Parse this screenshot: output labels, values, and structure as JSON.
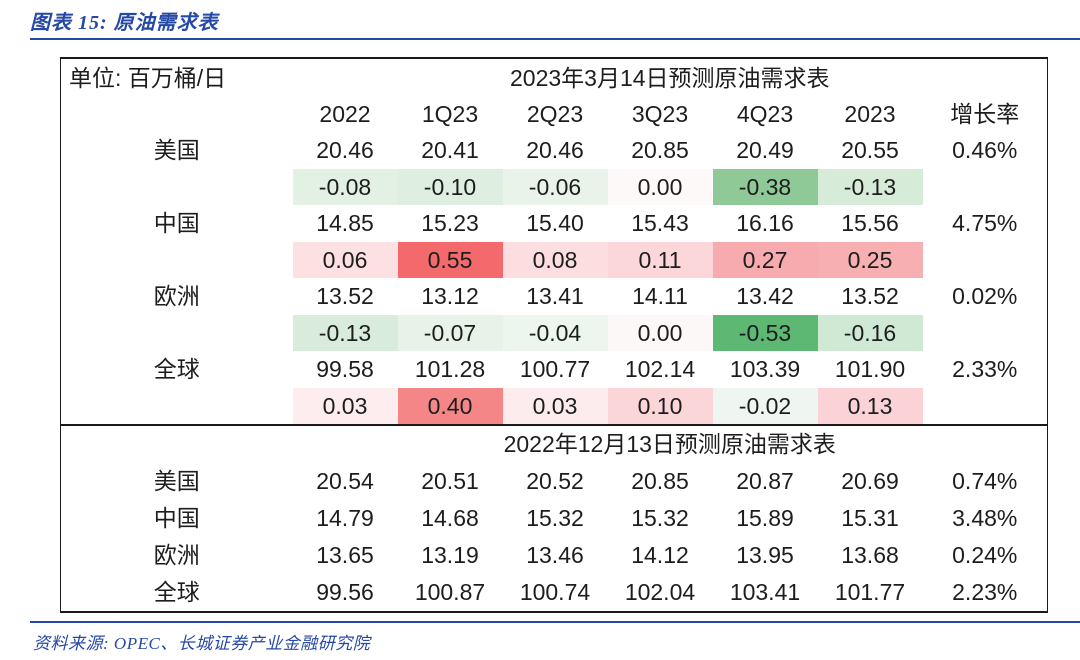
{
  "page": {
    "figure_title": "图表 15:  原油需求表",
    "source": "资料来源: OPEC、长城证券产业金融研究院",
    "accent_color": "#2649a6"
  },
  "table": {
    "unit_label": "单位: 百万桶/日",
    "columns": [
      "2022",
      "1Q23",
      "2Q23",
      "3Q23",
      "4Q23",
      "2023",
      "增长率"
    ],
    "sections": [
      {
        "title": "2023年3月14日预测原油需求表",
        "has_column_header": true,
        "has_delta_rows": true,
        "rows": [
          {
            "label": "美国",
            "values": [
              "20.46",
              "20.41",
              "20.46",
              "20.85",
              "20.49",
              "20.55"
            ],
            "growth": "0.46%",
            "deltas": [
              {
                "v": "-0.08",
                "bg": "#e3f0e4"
              },
              {
                "v": "-0.10",
                "bg": "#deeee1"
              },
              {
                "v": "-0.06",
                "bg": "#e9f3ea"
              },
              {
                "v": "0.00",
                "bg": "#fdf9f9"
              },
              {
                "v": "-0.38",
                "bg": "#8fc998"
              },
              {
                "v": "-0.13",
                "bg": "#d7ebd9"
              }
            ]
          },
          {
            "label": "中国",
            "values": [
              "14.85",
              "15.23",
              "15.40",
              "15.43",
              "16.16",
              "15.56"
            ],
            "growth": "4.75%",
            "deltas": [
              {
                "v": "0.06",
                "bg": "#fce0e2"
              },
              {
                "v": "0.55",
                "bg": "#f4696c"
              },
              {
                "v": "0.08",
                "bg": "#fcdee0"
              },
              {
                "v": "0.11",
                "bg": "#fbd7da"
              },
              {
                "v": "0.27",
                "bg": "#f7abae"
              },
              {
                "v": "0.25",
                "bg": "#f8afb2"
              }
            ]
          },
          {
            "label": "欧洲",
            "values": [
              "13.52",
              "13.12",
              "13.41",
              "14.11",
              "13.42",
              "13.52"
            ],
            "growth": "0.02%",
            "deltas": [
              {
                "v": "-0.13",
                "bg": "#d9ecdc"
              },
              {
                "v": "-0.07",
                "bg": "#e7f2e8"
              },
              {
                "v": "-0.04",
                "bg": "#ecf5ee"
              },
              {
                "v": "0.00",
                "bg": "#fcf8f8"
              },
              {
                "v": "-0.53",
                "bg": "#5cb873"
              },
              {
                "v": "-0.16",
                "bg": "#d0e9d5"
              }
            ]
          },
          {
            "label": "全球",
            "values": [
              "99.58",
              "101.28",
              "100.77",
              "102.14",
              "103.39",
              "101.90"
            ],
            "growth": "2.33%",
            "deltas": [
              {
                "v": "0.03",
                "bg": "#fdedee"
              },
              {
                "v": "0.40",
                "bg": "#f58688"
              },
              {
                "v": "0.03",
                "bg": "#fdecee"
              },
              {
                "v": "0.10",
                "bg": "#fbd6d9"
              },
              {
                "v": "-0.02",
                "bg": "#eff5f1"
              },
              {
                "v": "0.13",
                "bg": "#fbd3d6"
              }
            ]
          }
        ]
      },
      {
        "title": "2022年12月13日预测原油需求表",
        "has_column_header": false,
        "has_delta_rows": false,
        "rows": [
          {
            "label": "美国",
            "values": [
              "20.54",
              "20.51",
              "20.52",
              "20.85",
              "20.87",
              "20.69"
            ],
            "growth": "0.74%"
          },
          {
            "label": "中国",
            "values": [
              "14.79",
              "14.68",
              "15.32",
              "15.32",
              "15.89",
              "15.31"
            ],
            "growth": "3.48%"
          },
          {
            "label": "欧洲",
            "values": [
              "13.65",
              "13.19",
              "13.46",
              "14.12",
              "13.95",
              "13.68"
            ],
            "growth": "0.24%"
          },
          {
            "label": "全球",
            "values": [
              "99.56",
              "100.87",
              "100.74",
              "102.04",
              "103.41",
              "101.77"
            ],
            "growth": "2.23%"
          }
        ]
      }
    ]
  }
}
